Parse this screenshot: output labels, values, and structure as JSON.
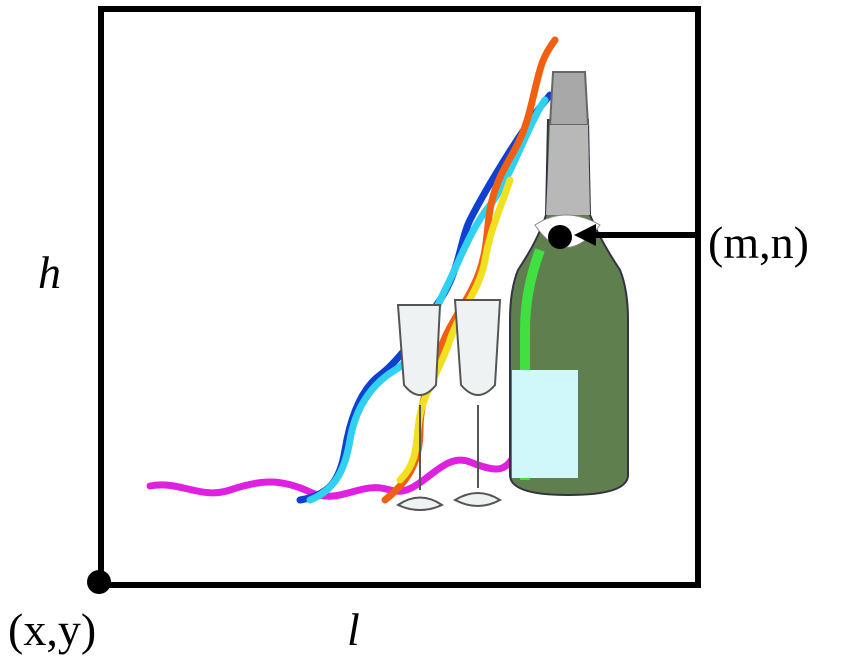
{
  "labels": {
    "height": "h",
    "length": "l",
    "origin": "(x,y)",
    "point": "(m,n)"
  }
}
